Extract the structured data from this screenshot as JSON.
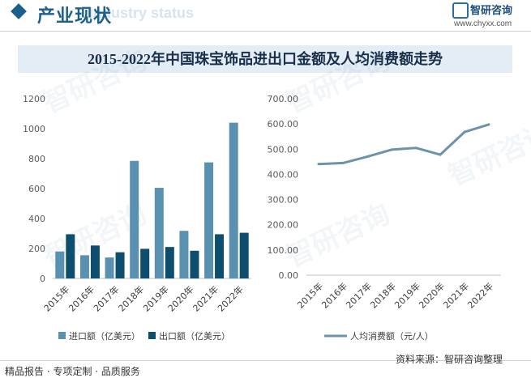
{
  "header": {
    "section_title": "产业现状",
    "ghost_text": "Industry status",
    "brand_name": "智研咨询",
    "brand_url": "www.chyxx.com"
  },
  "title": "2015-2022年中国珠宝饰品进出口金额及人均消费额走势",
  "watermark": "智研咨询",
  "footer": {
    "left_text": "精品报告 · 专项定制 · 品质服务",
    "source_text": "资料来源：智研咨询整理"
  },
  "colors": {
    "import": "#5b91b0",
    "export": "#0d4e6e",
    "line": "#6d93ab",
    "brand": "#1b5f8c"
  },
  "chart_data": [
    {
      "type": "bar",
      "categories": [
        "2015年",
        "2016年",
        "2017年",
        "2018年",
        "2019年",
        "2020年",
        "2021年",
        "2022年"
      ],
      "series": [
        {
          "name": "进口额（亿美元）",
          "values": [
            180,
            155,
            140,
            785,
            605,
            318,
            775,
            1040
          ]
        },
        {
          "name": "出口额（亿美元）",
          "values": [
            295,
            220,
            175,
            198,
            210,
            185,
            295,
            305
          ]
        }
      ],
      "ylim": [
        0,
        1200
      ],
      "yticks": [
        "0",
        "200",
        "400",
        "600",
        "800",
        "1000",
        "1200"
      ],
      "grid": false,
      "legend": "bottom"
    },
    {
      "type": "line",
      "categories": [
        "2015年",
        "2016年",
        "2017年",
        "2018年",
        "2019年",
        "2020年",
        "2021年",
        "2022年"
      ],
      "series": [
        {
          "name": "人均消费额（元/人）",
          "values": [
            441,
            445,
            470,
            498,
            505,
            478,
            568,
            598
          ]
        }
      ],
      "ylim": [
        0,
        700
      ],
      "yticks": [
        "0.00",
        "100.00",
        "200.00",
        "300.00",
        "400.00",
        "500.00",
        "600.00",
        "700.00"
      ],
      "grid": false,
      "legend": "bottom"
    }
  ]
}
